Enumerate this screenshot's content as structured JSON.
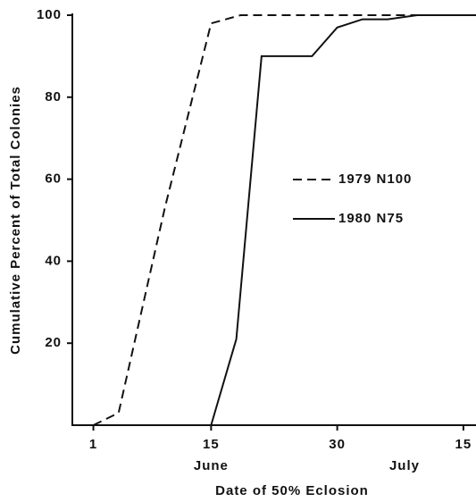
{
  "chart_data": {
    "type": "line",
    "x_label": "Date of 50% Eclosion",
    "y_label": "Cumulative Percent of Total Colonies",
    "xlim": [
      -1.5,
      46.5
    ],
    "ylim": [
      0,
      100
    ],
    "xticks": [
      1,
      15,
      30,
      {
        "value": 45,
        "label": "15"
      }
    ],
    "yticks": [
      20,
      40,
      60,
      80,
      100
    ],
    "month_labels": [
      {
        "value": 15,
        "label": "June"
      },
      {
        "value": 38,
        "label": "July"
      }
    ],
    "series": [
      {
        "name": "1979 N100",
        "color": "#111111",
        "dash": "10,6",
        "x": [
          1,
          4,
          9.5,
          15,
          18.5,
          46.5
        ],
        "values": [
          0,
          3,
          53,
          98,
          100,
          100
        ]
      },
      {
        "name": "1980 N75",
        "color": "#111111",
        "dash": "none",
        "x": [
          15,
          18,
          21,
          27,
          30,
          33,
          36,
          39.5,
          46.5
        ],
        "values": [
          0,
          21,
          90,
          90,
          97,
          99,
          99,
          100,
          100
        ]
      }
    ]
  }
}
